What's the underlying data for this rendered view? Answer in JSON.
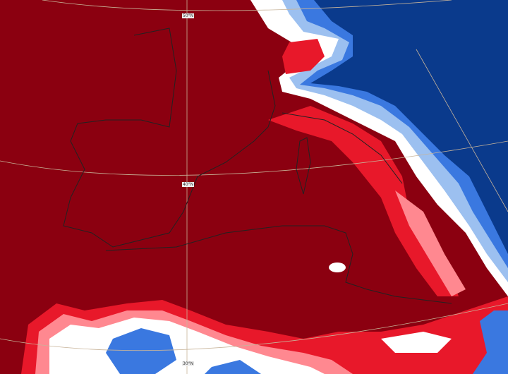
{
  "map": {
    "colors": {
      "strong_positive": "#8b0010",
      "positive": "#e8182a",
      "weak_positive": "#ff8890",
      "neutral": "#ffffff",
      "weak_negative": "#9cc0f0",
      "negative": "#3a78e0",
      "strong_negative": "#0a3a8c",
      "coastline": "#222222",
      "graticule": "#c8b49a"
    },
    "graticule_labels": [
      "50°N",
      "40°N",
      "30°N"
    ]
  }
}
